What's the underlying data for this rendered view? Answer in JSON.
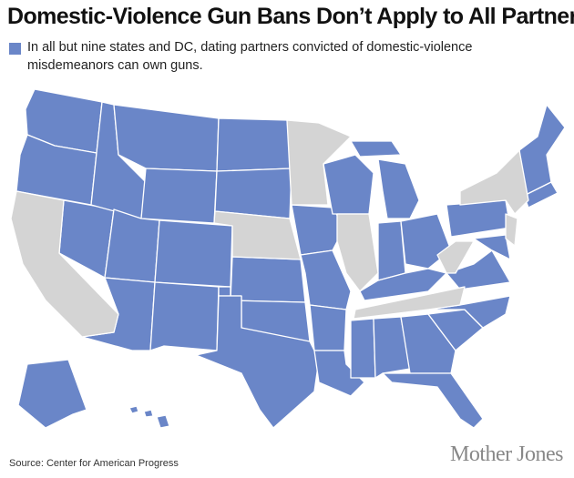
{
  "header": {
    "title": "Domestic-Violence Gun Bans Don’t Apply to All Partners"
  },
  "legend": {
    "color": "#6a86c8",
    "lines": [
      "In all but nine states and DC, dating partners convicted of domestic-violence",
      "misdemeanors can own guns."
    ]
  },
  "map": {
    "highlight_color": "#6a86c8",
    "other_color": "#d4d4d4"
  },
  "footer": {
    "source": "Source: Center for American Progress",
    "brand": "Mother Jones"
  }
}
